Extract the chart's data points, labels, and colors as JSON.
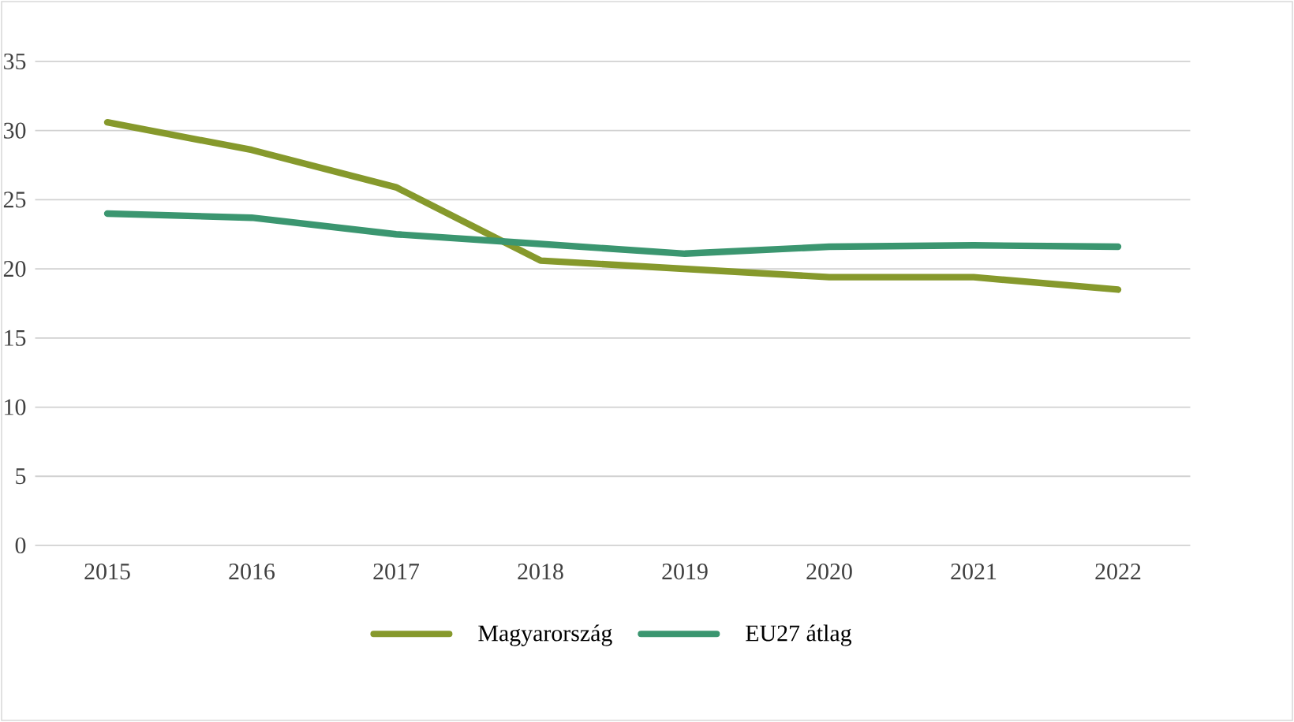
{
  "chart_data": {
    "type": "line",
    "categories": [
      "2015",
      "2016",
      "2017",
      "2018",
      "2019",
      "2020",
      "2021",
      "2022"
    ],
    "series": [
      {
        "name": "Magyarország",
        "color": "#86992c",
        "values": [
          30.6,
          28.6,
          25.9,
          20.6,
          20.0,
          19.4,
          19.4,
          18.5
        ]
      },
      {
        "name": "EU27 átlag",
        "color": "#3b9670",
        "values": [
          24.0,
          23.7,
          22.5,
          21.8,
          21.1,
          21.6,
          21.7,
          21.6
        ]
      }
    ],
    "ylim": [
      0,
      35
    ],
    "yticks": [
      0,
      5,
      10,
      15,
      20,
      25,
      30,
      35
    ],
    "grid": "y",
    "legend": "bottom",
    "marker": "none",
    "line_style": "solid"
  }
}
